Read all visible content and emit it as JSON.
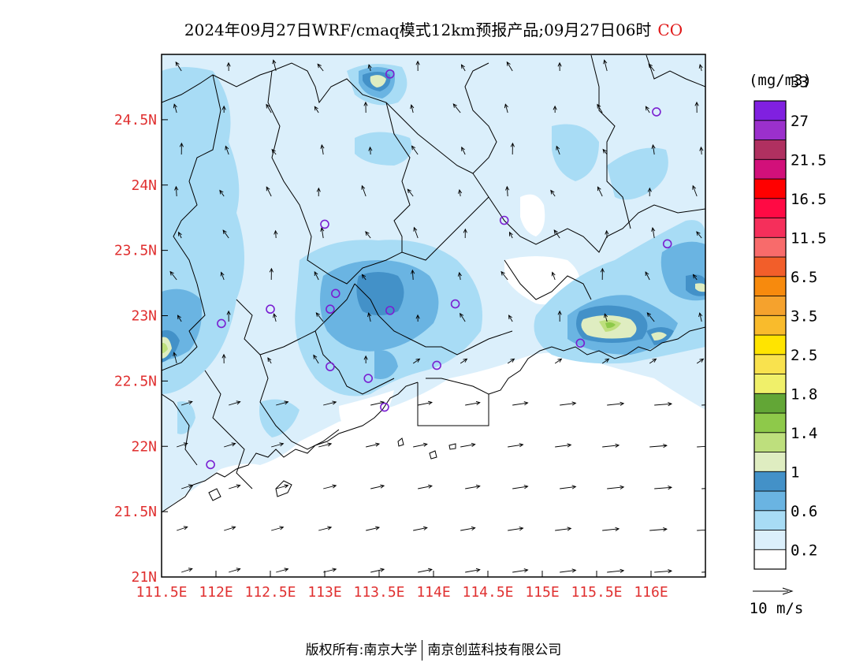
{
  "title": {
    "main": "2024年09月27日WRF/cmaq模式12km预报产品;09月27日06时",
    "species": "CO"
  },
  "footer": {
    "left": "版权所有:南京大学",
    "right": "南京创蓝科技有限公司"
  },
  "map": {
    "lon_range": [
      111.5,
      116.5
    ],
    "lat_range": [
      21,
      25
    ],
    "lon_ticks": [
      "111.5E",
      "112E",
      "112.5E",
      "113E",
      "113.5E",
      "114E",
      "114.5E",
      "115E",
      "115.5E",
      "116E"
    ],
    "lat_ticks": [
      "21N",
      "21.5N",
      "22N",
      "22.5N",
      "23N",
      "23.5N",
      "24N",
      "24.5N"
    ],
    "tick_color": "#e03030"
  },
  "legend": {
    "unit": "(mg/m3)",
    "labels": [
      "0.2",
      "0.6",
      "1",
      "1.4",
      "1.8",
      "2.5",
      "3.5",
      "6.5",
      "11.5",
      "16.5",
      "21.5",
      "27",
      "33"
    ],
    "colors": [
      "#ffffff",
      "#dbeffb",
      "#a8dcf5",
      "#6ab4e2",
      "#4391c8",
      "#dfedc1",
      "#bedf7d",
      "#8ec94a",
      "#62a636",
      "#f0f06a",
      "#f9e24e",
      "#ffe400",
      "#f9bb2c",
      "#f5a22d",
      "#f78a0d",
      "#f25e2a",
      "#f86b6b",
      "#f52f5b",
      "#ff0a44",
      "#ff0000",
      "#d2107a",
      "#b03060",
      "#9b30cc",
      "#8020e0"
    ]
  },
  "wind_scale": {
    "label": "10 m/s"
  },
  "stations": [
    {
      "lon": 113.6,
      "lat": 24.85
    },
    {
      "lon": 116.05,
      "lat": 24.56
    },
    {
      "lon": 113.0,
      "lat": 23.7
    },
    {
      "lon": 114.65,
      "lat": 23.73
    },
    {
      "lon": 116.15,
      "lat": 23.55
    },
    {
      "lon": 113.1,
      "lat": 23.17
    },
    {
      "lon": 112.5,
      "lat": 23.05
    },
    {
      "lon": 113.05,
      "lat": 23.05
    },
    {
      "lon": 113.6,
      "lat": 23.04
    },
    {
      "lon": 114.2,
      "lat": 23.09
    },
    {
      "lon": 112.05,
      "lat": 22.94
    },
    {
      "lon": 113.05,
      "lat": 22.61
    },
    {
      "lon": 113.4,
      "lat": 22.52
    },
    {
      "lon": 114.03,
      "lat": 22.62
    },
    {
      "lon": 113.55,
      "lat": 22.3
    },
    {
      "lon": 111.95,
      "lat": 21.86
    },
    {
      "lon": 115.35,
      "lat": 22.79
    }
  ]
}
